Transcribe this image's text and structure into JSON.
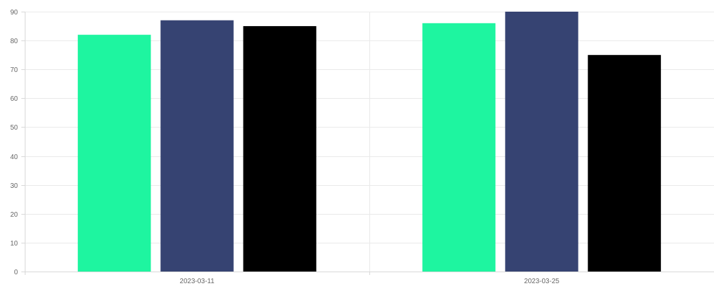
{
  "chart_data": {
    "type": "bar",
    "title": "",
    "xlabel": "",
    "ylabel": "",
    "categories": [
      "2023-03-11",
      "2023-03-25"
    ],
    "series": [
      {
        "color": "#1ef5a0",
        "values": [
          82,
          86
        ]
      },
      {
        "color": "#364372",
        "values": [
          87,
          90
        ]
      },
      {
        "color": "#000000",
        "values": [
          85,
          75
        ]
      }
    ],
    "ylim": [
      0,
      90
    ],
    "yticks": [
      0,
      10,
      20,
      30,
      40,
      50,
      60,
      70,
      80,
      90
    ],
    "grid": true,
    "legend": "none"
  }
}
